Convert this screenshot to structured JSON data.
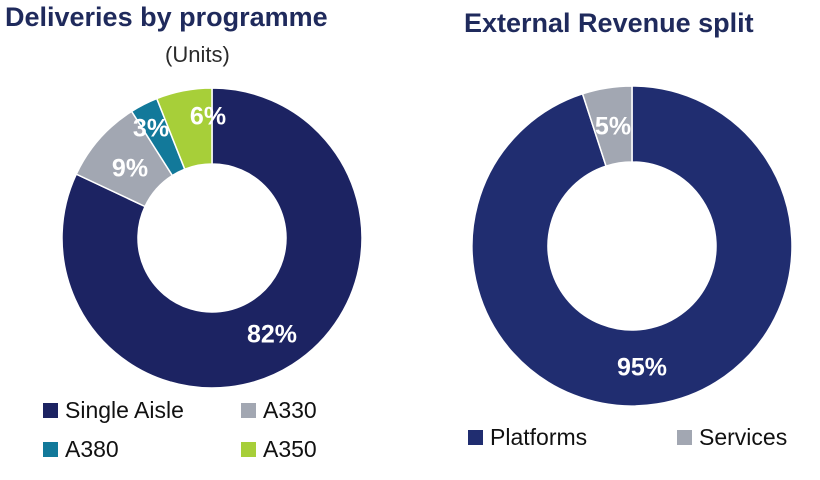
{
  "chart_data": [
    {
      "type": "pie",
      "title": "Deliveries by programme",
      "subtitle": "(Units)",
      "donut": true,
      "legend_position": "bottom",
      "categories": [
        "Single Aisle",
        "A330",
        "A380",
        "A350"
      ],
      "values": [
        82,
        9,
        3,
        6
      ],
      "labels": [
        "82%",
        "9%",
        "3%",
        "6%"
      ],
      "colors": [
        "#1c2362",
        "#a2a7b2",
        "#12799a",
        "#a7cf39"
      ]
    },
    {
      "type": "pie",
      "title": "External Revenue split",
      "donut": true,
      "legend_position": "bottom",
      "categories": [
        "Platforms",
        "Services"
      ],
      "values": [
        95,
        5
      ],
      "labels": [
        "95%",
        "5%"
      ],
      "colors": [
        "#202d70",
        "#a2a7b2"
      ]
    }
  ]
}
